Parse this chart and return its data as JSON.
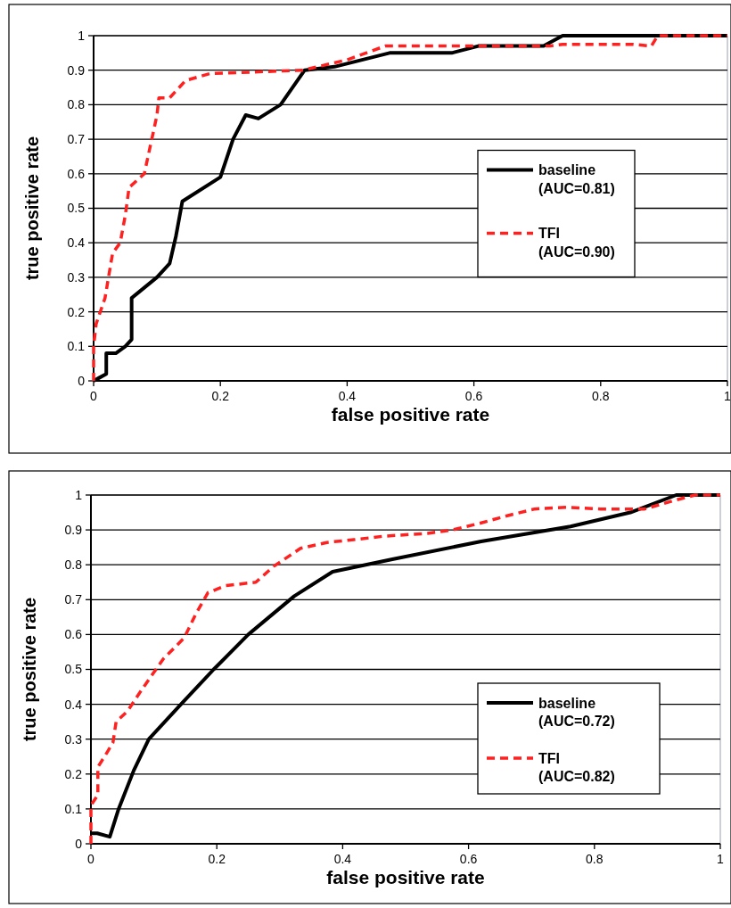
{
  "chart_data": [
    {
      "type": "line",
      "xlabel": "false positive rate",
      "ylabel": "true positive rate",
      "xlim": [
        0,
        1
      ],
      "ylim": [
        0,
        1
      ],
      "xticks": [
        0,
        0.2,
        0.4,
        0.6,
        0.8,
        1
      ],
      "yticks": [
        0,
        0.1,
        0.2,
        0.3,
        0.4,
        0.5,
        0.6,
        0.7,
        0.8,
        0.9,
        1
      ],
      "grid": "y",
      "legend": "right",
      "series": [
        {
          "name": "baseline (AUC=0.81)",
          "color": "#000000",
          "line_style": "solid",
          "x": [
            0,
            0.01,
            0.02,
            0.02,
            0.035,
            0.05,
            0.06,
            0.06,
            0.1,
            0.12,
            0.13,
            0.14,
            0.2,
            0.22,
            0.24,
            0.26,
            0.295,
            0.333,
            0.38,
            0.467,
            0.565,
            0.607,
            0.71,
            0.74,
            1
          ],
          "values": [
            0,
            0.01,
            0.02,
            0.08,
            0.08,
            0.1,
            0.12,
            0.24,
            0.3,
            0.34,
            0.42,
            0.52,
            0.59,
            0.7,
            0.77,
            0.76,
            0.8,
            0.9,
            0.91,
            0.95,
            0.95,
            0.97,
            0.97,
            1,
            1
          ]
        },
        {
          "name": "TFI (AUC=0.90)",
          "color": "#ff2020",
          "line_style": "dashed",
          "x": [
            0,
            0,
            0.004,
            0.018,
            0.03,
            0.042,
            0.05,
            0.056,
            0.08,
            0.1,
            0.103,
            0.12,
            0.145,
            0.183,
            0.33,
            0.4,
            0.46,
            0.72,
            0.74,
            0.85,
            0.88,
            0.89,
            1
          ],
          "values": [
            0,
            0.1,
            0.165,
            0.24,
            0.37,
            0.4,
            0.48,
            0.56,
            0.6,
            0.77,
            0.82,
            0.82,
            0.87,
            0.89,
            0.9,
            0.93,
            0.97,
            0.97,
            0.975,
            0.975,
            0.97,
            1,
            1
          ]
        }
      ]
    },
    {
      "type": "line",
      "xlabel": "false positive rate",
      "ylabel": "true positive rate",
      "xlim": [
        0,
        1
      ],
      "ylim": [
        0,
        1
      ],
      "xticks": [
        0,
        0.2,
        0.4,
        0.6,
        0.8,
        1
      ],
      "yticks": [
        0,
        0.1,
        0.2,
        0.3,
        0.4,
        0.5,
        0.6,
        0.7,
        0.8,
        0.9,
        1
      ],
      "grid": "y",
      "legend": "bottom right",
      "series": [
        {
          "name": "baseline (AUC=0.72)",
          "color": "#000000",
          "line_style": "solid",
          "x": [
            0,
            0.01,
            0.03,
            0.044,
            0.068,
            0.092,
            0.143,
            0.195,
            0.25,
            0.323,
            0.384,
            0.479,
            0.62,
            0.762,
            0.857,
            0.93,
            1
          ],
          "values": [
            0.03,
            0.03,
            0.02,
            0.1,
            0.21,
            0.3,
            0.4,
            0.5,
            0.6,
            0.71,
            0.78,
            0.816,
            0.867,
            0.91,
            0.95,
            1,
            1
          ]
        },
        {
          "name": "TFI (AUC=0.82)",
          "color": "#ff2020",
          "line_style": "dashed",
          "x": [
            0,
            0,
            0.011,
            0.011,
            0.025,
            0.035,
            0.04,
            0.058,
            0.082,
            0.115,
            0.148,
            0.167,
            0.186,
            0.214,
            0.262,
            0.29,
            0.333,
            0.375,
            0.418,
            0.465,
            0.535,
            0.574,
            0.62,
            0.66,
            0.705,
            0.757,
            0.81,
            0.88,
            0.928,
            0.96,
            1
          ],
          "values": [
            0,
            0.11,
            0.14,
            0.22,
            0.26,
            0.29,
            0.35,
            0.38,
            0.445,
            0.53,
            0.59,
            0.66,
            0.72,
            0.74,
            0.75,
            0.795,
            0.847,
            0.864,
            0.872,
            0.882,
            0.89,
            0.9,
            0.92,
            0.94,
            0.96,
            0.965,
            0.96,
            0.96,
            0.985,
            1,
            1
          ]
        }
      ]
    }
  ]
}
